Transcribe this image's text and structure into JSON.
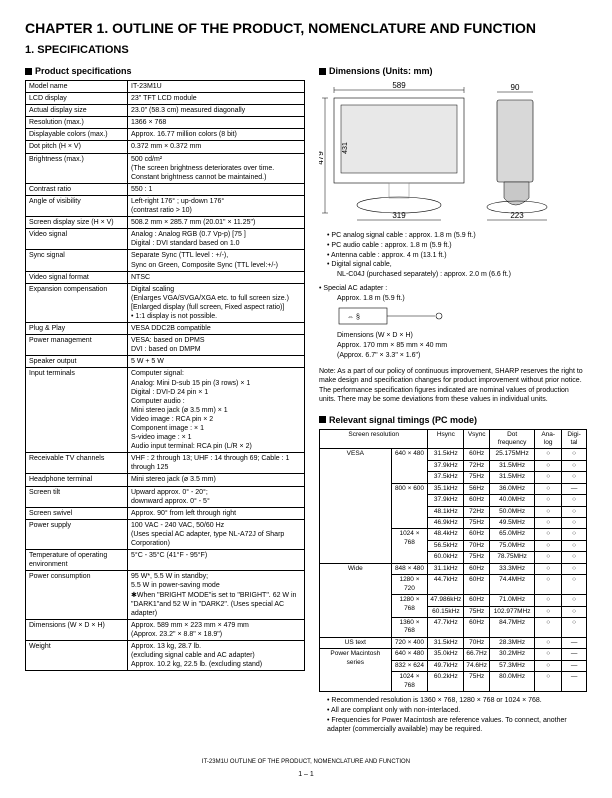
{
  "chapter_title": "CHAPTER 1. OUTLINE OF THE PRODUCT, NOMENCLATURE AND FUNCTION",
  "section_title": "1. SPECIFICATIONS",
  "spec_heading": "Product specifications",
  "dim_heading": "Dimensions (Units: mm)",
  "timing_heading": "Relevant signal timings (PC mode)",
  "spec_rows": [
    [
      "Model name",
      "IT-23M1U"
    ],
    [
      "LCD display",
      "23\" TFT LCD module"
    ],
    [
      "Actual display size",
      "23.0\" (58.3 cm) measured diagonally"
    ],
    [
      "Resolution (max.)",
      "1366 × 768"
    ],
    [
      "Displayable colors (max.)",
      "Approx. 16.77 million colors (8 bit)"
    ],
    [
      "Dot pitch (H × V)",
      "0.372 mm × 0.372 mm"
    ],
    [
      "Brightness (max.)",
      "500 cd/m²\n(The screen brightness deteriorates over time. Constant brightness cannot be maintained.)"
    ],
    [
      "Contrast ratio",
      "550 : 1"
    ],
    [
      "Angle of visibility",
      "Left-right 176° ; up-down 176°\n(contrast ratio > 10)"
    ],
    [
      "Screen display size (H × V)",
      "508.2 mm × 285.7 mm (20.01\" × 11.25\")"
    ],
    [
      "Video signal",
      "Analog : Analog RGB (0.7 Vp-p) [75  ]\nDigital : DVI standard based on 1.0"
    ],
    [
      "Sync signal",
      "Separate Sync (TTL level : +/-),\nSync on Green, Composite Sync (TTL level:+/-)"
    ],
    [
      "Video signal format",
      "NTSC"
    ],
    [
      "Expansion compensation",
      "Digital scaling\n(Enlarges VGA/SVGA/XGA etc. to full screen size.)\n[Enlarged display (full screen, Fixed aspect ratio)]\n• 1:1 display is not possible."
    ],
    [
      "Plug & Play",
      "VESA DDC2B compatible"
    ],
    [
      "Power management",
      "VESA: based on DPMS\nDVI    : based on DMPM"
    ],
    [
      "Speaker output",
      "5 W + 5 W"
    ],
    [
      "Input terminals",
      "Computer signal:\n  Analog: Mini D-sub 15 pin (3 rows) × 1\n  Digital : DVI-D 24 pin × 1\nComputer audio :\n  Mini stereo jack (ø 3.5 mm) × 1\nVideo image        : RCA pin × 2\nComponent image : × 1\nS-video image       : × 1\nAudio input terminal: RCA pin (L/R × 2)"
    ],
    [
      "Receivable TV channels",
      "VHF : 2 through 13; UHF : 14 through 69; Cable : 1 through 125"
    ],
    [
      "Headphone terminal",
      "Mini stereo jack (ø 3.5 mm)"
    ],
    [
      "Screen tilt",
      "Upward approx. 0° - 20°;\ndownward approx. 0° - 5°"
    ],
    [
      "Screen swivel",
      "Approx. 90° from left through right"
    ],
    [
      "Power supply",
      "100 VAC - 240 VAC, 50/60 Hz\n(Uses special AC adapter, type NL-A72J of Sharp Corporation)"
    ],
    [
      "Temperature of operating environment",
      "5°C - 35°C (41°F - 95°F)"
    ],
    [
      "Power consumption",
      "95 W*, 5.5 W in standby;\n5.5 W in power-saving mode\n✱When \"BRIGHT MODE\"is set to \"BRIGHT\". 62 W in \"DARK1\"and 52 W in \"DARK2\". (Uses special AC adapter)"
    ],
    [
      "Dimensions (W × D × H)",
      "Approx. 589 mm × 223 mm × 479 mm\n(Approx. 23.2\" × 8.8\" × 18.9\")"
    ],
    [
      "Weight",
      "Approx. 13 kg, 28.7 lb.\n(excluding signal cable and AC adapter)\nApprox. 10.2 kg, 22.5 lb. (excluding stand)"
    ]
  ],
  "dim_labels": {
    "w": "589",
    "h": "479",
    "h2": "431",
    "base": "319",
    "sw": "90",
    "sd": "223"
  },
  "cable_notes": [
    "PC analog signal cable : approx. 1.8 m (5.9 ft.)",
    "PC audio cable : approx. 1.8 m (5.9 ft.)",
    "Antenna cable : approx. 4 m (13.1 ft.)",
    "Digital signal cable,",
    "NL-C04J (purchased separately) : approx. 2.0 m (6.6 ft.)"
  ],
  "adapter_heading": "Special AC adapter :",
  "adapter_len": "Approx. 1.8 m (5.9 ft.)",
  "adapter_dim1": "Dimensions (W × D × H)",
  "adapter_dim2": "Approx. 170 mm × 85 mm × 40 mm",
  "adapter_dim3": "(Approx. 6.7\" × 3.3\" × 1.6\")",
  "policy_note": "Note:  As a part of our policy of continuous improvement, SHARP reserves the right to make design and specification changes for product improvement without prior notice. The performance specification figures indicated are nominal values of production units. There may be some deviations from these values in individual units.",
  "timing_headers": [
    "Screen resolution",
    "",
    "Hsync",
    "Vsync",
    "Dot frequency",
    "Ana-log",
    "Digi-tal"
  ],
  "timing_rows": [
    [
      "VESA",
      "640 × 480",
      "31.5kHz",
      "60Hz",
      "25.175MHz",
      "○",
      "○"
    ],
    [
      "",
      "",
      "37.9kHz",
      "72Hz",
      "31.5MHz",
      "○",
      "○"
    ],
    [
      "",
      "",
      "37.5kHz",
      "75Hz",
      "31.5MHz",
      "○",
      "○"
    ],
    [
      "",
      "800 × 600",
      "35.1kHz",
      "56Hz",
      "36.0MHz",
      "○",
      "—"
    ],
    [
      "",
      "",
      "37.9kHz",
      "60Hz",
      "40.0MHz",
      "○",
      "○"
    ],
    [
      "",
      "",
      "48.1kHz",
      "72Hz",
      "50.0MHz",
      "○",
      "○"
    ],
    [
      "",
      "",
      "46.9kHz",
      "75Hz",
      "49.5MHz",
      "○",
      "○"
    ],
    [
      "",
      "1024 × 768",
      "48.4kHz",
      "60Hz",
      "65.0MHz",
      "○",
      "○"
    ],
    [
      "",
      "",
      "56.5kHz",
      "70Hz",
      "75.0MHz",
      "○",
      "○"
    ],
    [
      "",
      "",
      "60.0kHz",
      "75Hz",
      "78.75MHz",
      "○",
      "○"
    ],
    [
      "Wide",
      "848 × 480",
      "31.1kHz",
      "60Hz",
      "33.3MHz",
      "○",
      "○"
    ],
    [
      "",
      "1280 × 720",
      "44.7kHz",
      "60Hz",
      "74.4MHz",
      "○",
      "○"
    ],
    [
      "",
      "1280 × 768",
      "47.986kHz",
      "60Hz",
      "71.0MHz",
      "○",
      "○"
    ],
    [
      "",
      "",
      "60.15kHz",
      "75Hz",
      "102.977MHz",
      "○",
      "○"
    ],
    [
      "",
      "1360 × 768",
      "47.7kHz",
      "60Hz",
      "84.7MHz",
      "○",
      "○"
    ],
    [
      "US text",
      "720 × 400",
      "31.5kHz",
      "70Hz",
      "28.3MHz",
      "○",
      "—"
    ],
    [
      "Power Macintosh series",
      "640 × 480",
      "35.0kHz",
      "66.7Hz",
      "30.2MHz",
      "○",
      "—"
    ],
    [
      "",
      "832 × 624",
      "49.7kHz",
      "74.6Hz",
      "57.3MHz",
      "○",
      "—"
    ],
    [
      "",
      "1024 × 768",
      "60.2kHz",
      "75Hz",
      "80.0MHz",
      "○",
      "—"
    ]
  ],
  "timing_groupspan": {
    "0": 10,
    "10": 5,
    "15": 1,
    "16": 3
  },
  "timing_notes": [
    "Recommended resolution is 1360 × 768, 1280 × 768 or 1024 × 768.",
    "All are compliant only with non-interlaced.",
    "Frequencies for Power Macintosh are reference values. To connect, another adapter (commercially available) may be required."
  ],
  "footer1": "IT-23M1U   OUTLINE OF THE PRODUCT, NOMENCLATURE AND FUNCTION",
  "footer2": "1 – 1"
}
